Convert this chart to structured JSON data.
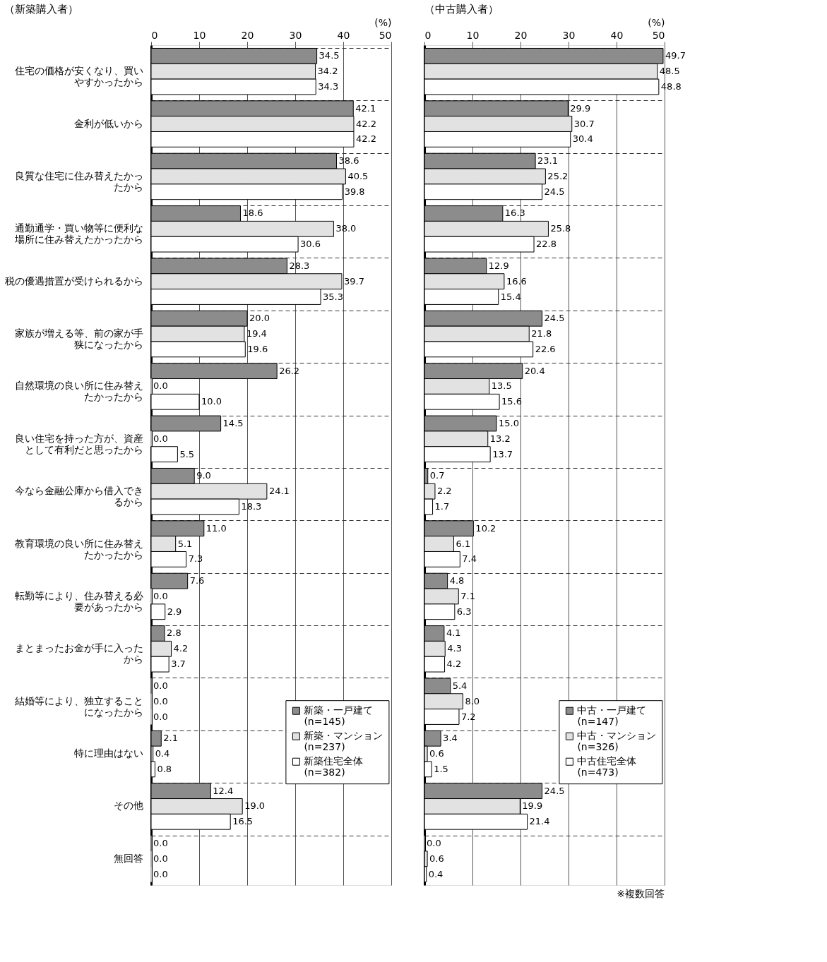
{
  "chart_data": [
    {
      "type": "bar",
      "orientation": "horizontal",
      "title": "（新築購入者）",
      "xlabel": "(%)",
      "categories": [
        "住宅の価格が安くなり、買いやすかったから",
        "金利が低いから",
        "良質な住宅に住み替えたかったから",
        "通勤通学・買い物等に便利な場所に住み替えたかったから",
        "税の優遇措置が受けられるから",
        "家族が増える等、前の家が手狭になったから",
        "自然環境の良い所に住み替えたかったから",
        "良い住宅を持った方が、資産として有利だと思ったから",
        "今なら金融公庫から借入できるから",
        "教育環境の良い所に住み替えたかったから",
        "転勤等により、住み替える必要があったから",
        "まとまったお金が手に入ったから",
        "結婚等により、独立することになったから",
        "特に理由はない",
        "その他",
        "無回答"
      ],
      "series": [
        {
          "name": "新築・一戸建て\n(n=145)",
          "color": "#8c8c8c",
          "values": [
            34.5,
            42.1,
            38.6,
            18.6,
            28.3,
            20.0,
            26.2,
            14.5,
            9.0,
            11.0,
            7.6,
            2.8,
            0.0,
            2.1,
            12.4,
            0.0
          ],
          "value_labels": [
            "34.5",
            "42.1",
            "38.6",
            "18.6",
            "28.3",
            "20.0",
            "26.2",
            "14.5",
            "9.0",
            "11.0",
            "7.6",
            "2.8",
            "0.0",
            "2.1",
            "12.4",
            "0.0"
          ]
        },
        {
          "name": "新築・マンション\n(n=237)",
          "color": "#e2e2e2",
          "values": [
            34.2,
            42.2,
            40.5,
            38.0,
            39.7,
            19.4,
            0.0,
            0.0,
            24.1,
            5.1,
            0.0,
            4.2,
            0.0,
            0.4,
            19.0,
            0.0
          ],
          "value_labels": [
            "34.2",
            "42.2",
            "40.5",
            "38.0",
            "39.7",
            "19.4",
            "0.0",
            "0.0",
            "24.1",
            "5.1",
            "0.0",
            "4.2",
            "0.0",
            "0.4",
            "19.0",
            "0.0"
          ]
        },
        {
          "name": "新築住宅全体\n(n=382)",
          "color": "#ffffff",
          "values": [
            34.3,
            42.2,
            39.8,
            30.6,
            35.3,
            19.6,
            10.0,
            5.5,
            18.3,
            7.3,
            2.9,
            3.7,
            0.0,
            0.8,
            16.5,
            0.0
          ],
          "value_labels": [
            "34.3",
            "42.2",
            "39.8",
            "30.6",
            "35.3",
            "19.6",
            "10.0",
            "5.5",
            "18.3",
            "7.3",
            "2.9",
            "3.7",
            "0.0",
            "0.8",
            "16.5",
            "0.0"
          ]
        }
      ],
      "xlim": [
        0,
        50
      ],
      "xticks": [
        0,
        10,
        20,
        30,
        40,
        50
      ],
      "grid": true,
      "legend": "bottom right"
    },
    {
      "type": "bar",
      "orientation": "horizontal",
      "title": "（中古購入者）",
      "xlabel": "(%)",
      "tick_labels": "x",
      "categories": [
        "住宅の価格が安くなり、買いやすかったから",
        "金利が低いから",
        "良質な住宅に住み替えたかったから",
        "通勤通学・買い物等に便利な場所に住み替えたかったから",
        "税の優遇措置が受けられるから",
        "家族が増える等、前の家が手狭になったから",
        "自然環境の良い所に住み替えたかったから",
        "良い住宅を持った方が、資産として有利だと思ったから",
        "今なら金融公庫から借入できるから",
        "教育環境の良い所に住み替えたかったから",
        "転勤等により、住み替える必要があったから",
        "まとまったお金が手に入ったから",
        "結婚等により、独立することになったから",
        "特に理由はない",
        "その他",
        "無回答"
      ],
      "series": [
        {
          "name": "中古・一戸建て\n(n=147)",
          "color": "#8c8c8c",
          "values": [
            49.7,
            29.9,
            23.1,
            16.3,
            12.9,
            24.5,
            20.4,
            15.0,
            0.7,
            10.2,
            4.8,
            4.1,
            5.4,
            3.4,
            24.5,
            0.0
          ],
          "value_labels": [
            "49.7",
            "29.9",
            "23.1",
            "16.3",
            "12.9",
            "24.5",
            "20.4",
            "15.0",
            "0.7",
            "10.2",
            "4.8",
            "4.1",
            "5.4",
            "3.4",
            "24.5",
            "0.0"
          ]
        },
        {
          "name": "中古・マンション\n(n=326)",
          "color": "#e2e2e2",
          "values": [
            48.5,
            30.7,
            25.2,
            25.8,
            16.6,
            21.8,
            13.5,
            13.2,
            2.2,
            6.1,
            7.1,
            4.3,
            8.0,
            0.6,
            19.9,
            0.6
          ],
          "value_labels": [
            "48.5",
            "30.7",
            "25.2",
            "25.8",
            "16.6",
            "21.8",
            "13.5",
            "13.2",
            "2.2",
            "6.1",
            "7.1",
            "4.3",
            "8.0",
            "0.6",
            "19.9",
            "0.6"
          ]
        },
        {
          "name": "中古住宅全体\n(n=473)",
          "color": "#ffffff",
          "values": [
            48.8,
            30.4,
            24.5,
            22.8,
            15.4,
            22.6,
            15.6,
            13.7,
            1.7,
            7.4,
            6.3,
            4.2,
            7.2,
            1.5,
            21.4,
            0.4
          ],
          "value_labels": [
            "48.8",
            "30.4",
            "24.5",
            "22.8",
            "15.4",
            "22.6",
            "15.6",
            "13.7",
            "1.7",
            "7.4",
            "6.3",
            "4.2",
            "7.2",
            "1.5",
            "21.4",
            "0.4"
          ]
        }
      ],
      "xlim": [
        0,
        50
      ],
      "xticks": [
        0,
        10,
        20,
        30,
        40,
        50
      ],
      "grid": true,
      "legend": "bottom right",
      "annotations": [
        "※複数回答"
      ]
    }
  ]
}
